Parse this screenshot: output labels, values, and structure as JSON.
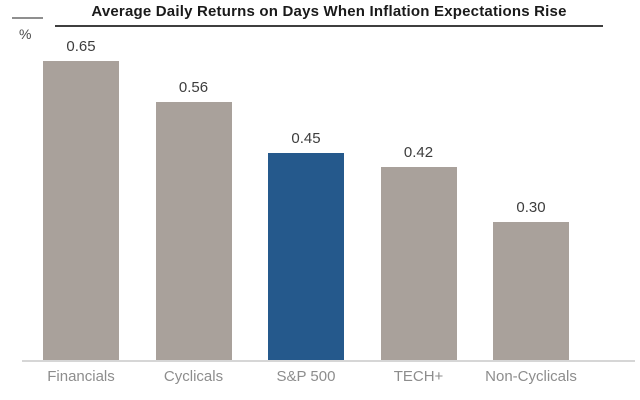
{
  "header": {
    "unit_label": "%"
  },
  "chart_data": {
    "type": "bar",
    "title": "Average Daily Returns on Days When Inflation Expectations Rise",
    "xlabel": "",
    "ylabel": "%",
    "categories": [
      "Financials",
      "Cyclicals",
      "S&P 500",
      "TECH+",
      "Non-Cyclicals"
    ],
    "values": [
      0.65,
      0.56,
      0.45,
      0.42,
      0.3
    ],
    "value_labels": [
      "0.65",
      "0.56",
      "0.45",
      "0.42",
      "0.30"
    ],
    "highlight_index": 2,
    "highlight_category": "S&P 500",
    "ylim": [
      0,
      0.7
    ],
    "grid": false,
    "legend": false,
    "colors": {
      "default_bar": "#a9a19b",
      "highlight_bar": "#25598c",
      "title_text": "#1a1a1a",
      "title_rule": "#3f3f3f",
      "value_text": "#3d3d3d",
      "category_text": "#8d8d8d",
      "baseline": "#d6d6d6",
      "axis_dash": "#8f8f8f"
    }
  }
}
